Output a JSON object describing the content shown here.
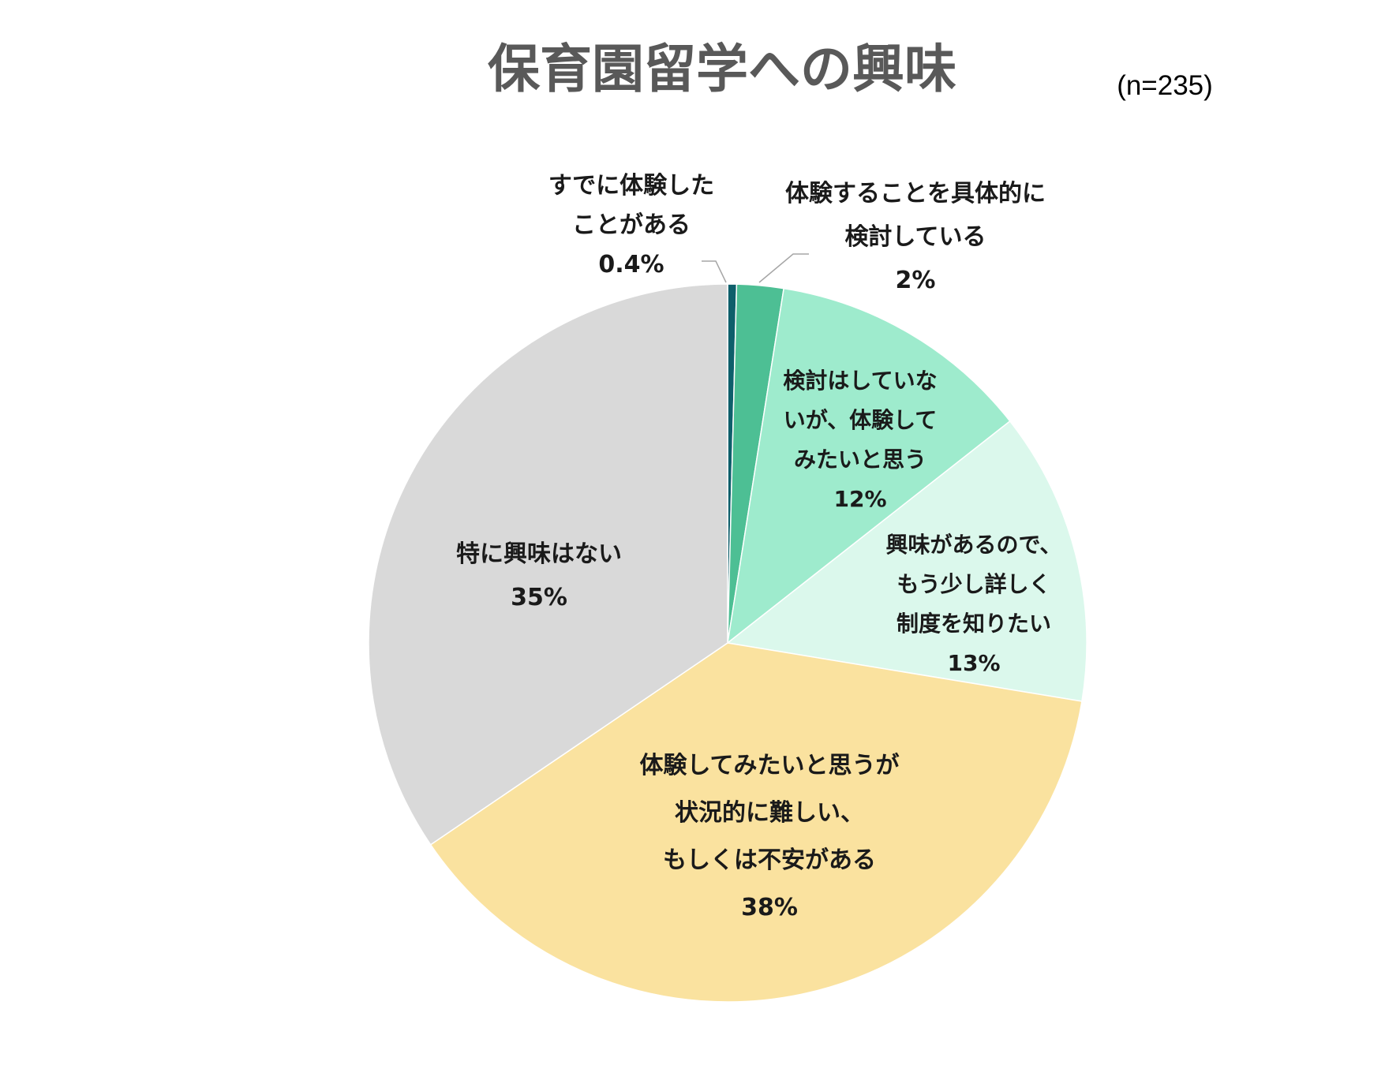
{
  "chart_data": {
    "type": "pie",
    "title": "保育園留学への興味",
    "subtitle": "(n=235)",
    "start": "12 o'clock, clockwise",
    "slices": [
      {
        "lines": [
          "すでに体験した",
          "ことがある"
        ],
        "value_label": "0.4%",
        "value": 0.4,
        "color": "#0e5f6b"
      },
      {
        "lines": [
          "体験することを具体的に",
          "検討している"
        ],
        "value_label": "2%",
        "value": 2.1,
        "color": "#4dbf94"
      },
      {
        "lines": [
          "検討はしていな",
          "いが、体験して",
          "みたいと思う"
        ],
        "value_label": "12%",
        "value": 11.9,
        "color": "#9eebcd"
      },
      {
        "lines": [
          "興味があるので、",
          "もう少し詳しく",
          "制度を知りたい"
        ],
        "value_label": "13%",
        "value": 13.2,
        "color": "#dbf8ec"
      },
      {
        "lines": [
          "体験してみたいと思うが",
          "状況的に難しい、",
          "もしくは不安がある"
        ],
        "value_label": "38%",
        "value": 37.9,
        "color": "#fae29f"
      },
      {
        "lines": [
          "特に興味はない"
        ],
        "value_label": "35%",
        "value": 34.5,
        "color": "#d9d9d9"
      }
    ]
  }
}
